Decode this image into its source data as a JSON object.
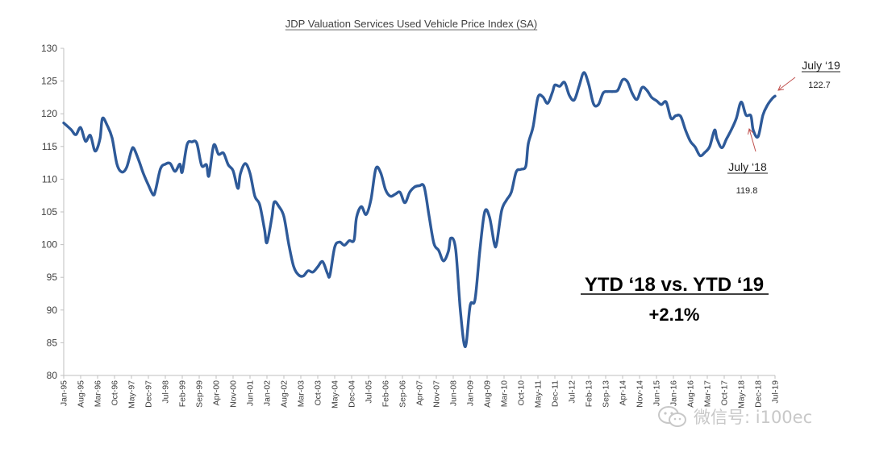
{
  "chart_data": {
    "type": "line",
    "title": "JDP Valuation Services Used Vehicle Price Index (SA)",
    "xlabel": "",
    "ylabel": "",
    "ylim": [
      80,
      130
    ],
    "yticks": [
      "130",
      "125",
      "120",
      "115",
      "110",
      "105",
      "100",
      "95",
      "90",
      "85",
      "80"
    ],
    "ytick_values": [
      130,
      125,
      120,
      115,
      110,
      105,
      100,
      95,
      90,
      85,
      80
    ],
    "xticks": [
      "Jan-95",
      "Aug-95",
      "Mar-96",
      "Oct-96",
      "May-97",
      "Dec-97",
      "Jul-98",
      "Feb-99",
      "Sep-99",
      "Apr-00",
      "Nov-00",
      "Jun-01",
      "Jan-02",
      "Aug-02",
      "Mar-03",
      "Oct-03",
      "May-04",
      "Dec-04",
      "Jul-05",
      "Feb-06",
      "Sep-06",
      "Apr-07",
      "Nov-07",
      "Jun-08",
      "Jan-09",
      "Aug-09",
      "Mar-10",
      "Oct-10",
      "May-11",
      "Dec-11",
      "Jul-12",
      "Feb-13",
      "Sep-13",
      "Apr-14",
      "Nov-14",
      "Jun-15",
      "Jan-16",
      "Aug-16",
      "Mar-17",
      "Oct-17",
      "May-18",
      "Dec-18",
      "Jul-19"
    ],
    "grid": false,
    "legend": "none",
    "series": [
      {
        "color": "#2e5a99",
        "points": [
          [
            "1995-01",
            118.6
          ],
          [
            "1995-04",
            117.6
          ],
          [
            "1995-06",
            116.8
          ],
          [
            "1995-08",
            117.9
          ],
          [
            "1995-10",
            115.8
          ],
          [
            "1995-12",
            116.7
          ],
          [
            "1996-02",
            114.3
          ],
          [
            "1996-04",
            116.2
          ],
          [
            "1996-05",
            119.3
          ],
          [
            "1996-07",
            118.2
          ],
          [
            "1996-09",
            116.3
          ],
          [
            "1996-11",
            112.3
          ],
          [
            "1997-01",
            111.1
          ],
          [
            "1997-03",
            111.8
          ],
          [
            "1997-05",
            114.4
          ],
          [
            "1997-06",
            114.7
          ],
          [
            "1997-08",
            112.9
          ],
          [
            "1997-10",
            110.8
          ],
          [
            "1997-12",
            109.1
          ],
          [
            "1998-02",
            107.6
          ],
          [
            "1998-03",
            108.4
          ],
          [
            "1998-05",
            111.6
          ],
          [
            "1998-07",
            112.3
          ],
          [
            "1998-09",
            112.4
          ],
          [
            "1998-11",
            111.2
          ],
          [
            "1999-01",
            112.3
          ],
          [
            "1999-02",
            111.1
          ],
          [
            "1999-04",
            115.3
          ],
          [
            "1999-06",
            115.7
          ],
          [
            "1999-08",
            115.5
          ],
          [
            "1999-10",
            112.1
          ],
          [
            "1999-12",
            112.2
          ],
          [
            "2000-01",
            110.5
          ],
          [
            "2000-03",
            115.2
          ],
          [
            "2000-05",
            113.8
          ],
          [
            "2000-07",
            114.0
          ],
          [
            "2000-09",
            112.2
          ],
          [
            "2000-11",
            111.3
          ],
          [
            "2001-01",
            108.6
          ],
          [
            "2001-02",
            110.8
          ],
          [
            "2001-04",
            112.4
          ],
          [
            "2001-06",
            110.9
          ],
          [
            "2001-08",
            107.4
          ],
          [
            "2001-10",
            106.1
          ],
          [
            "2001-12",
            102.3
          ],
          [
            "2002-01",
            100.3
          ],
          [
            "2002-03",
            104.1
          ],
          [
            "2002-04",
            106.5
          ],
          [
            "2002-06",
            105.8
          ],
          [
            "2002-08",
            104.3
          ],
          [
            "2002-10",
            100.1
          ],
          [
            "2002-12",
            96.7
          ],
          [
            "2003-02",
            95.4
          ],
          [
            "2003-04",
            95.2
          ],
          [
            "2003-06",
            96.0
          ],
          [
            "2003-08",
            95.8
          ],
          [
            "2003-10",
            96.6
          ],
          [
            "2003-12",
            97.4
          ],
          [
            "2004-02",
            95.6
          ],
          [
            "2004-03",
            95.3
          ],
          [
            "2004-05",
            99.6
          ],
          [
            "2004-07",
            100.4
          ],
          [
            "2004-09",
            99.9
          ],
          [
            "2004-11",
            100.6
          ],
          [
            "2005-01",
            100.7
          ],
          [
            "2005-02",
            104.1
          ],
          [
            "2005-04",
            105.8
          ],
          [
            "2005-06",
            104.6
          ],
          [
            "2005-08",
            106.9
          ],
          [
            "2005-10",
            111.6
          ],
          [
            "2005-12",
            111.0
          ],
          [
            "2006-02",
            108.4
          ],
          [
            "2006-04",
            107.4
          ],
          [
            "2006-06",
            107.7
          ],
          [
            "2006-08",
            108.0
          ],
          [
            "2006-10",
            106.4
          ],
          [
            "2006-12",
            108.0
          ],
          [
            "2007-02",
            108.8
          ],
          [
            "2007-04",
            109.0
          ],
          [
            "2007-06",
            108.8
          ],
          [
            "2007-08",
            104.4
          ],
          [
            "2007-10",
            100.2
          ],
          [
            "2007-12",
            99.1
          ],
          [
            "2008-02",
            97.5
          ],
          [
            "2008-04",
            99.0
          ],
          [
            "2008-05",
            101.0
          ],
          [
            "2008-07",
            99.3
          ],
          [
            "2008-09",
            89.7
          ],
          [
            "2008-11",
            84.4
          ],
          [
            "2009-01",
            90.7
          ],
          [
            "2009-03",
            91.6
          ],
          [
            "2009-05",
            99.1
          ],
          [
            "2009-07",
            105.0
          ],
          [
            "2009-09",
            104.2
          ],
          [
            "2009-11",
            100.1
          ],
          [
            "2009-12",
            100.3
          ],
          [
            "2010-02",
            105.2
          ],
          [
            "2010-04",
            106.8
          ],
          [
            "2010-06",
            108.0
          ],
          [
            "2010-08",
            111.1
          ],
          [
            "2010-10",
            111.5
          ],
          [
            "2010-12",
            112.0
          ],
          [
            "2011-01",
            115.4
          ],
          [
            "2011-03",
            118.0
          ],
          [
            "2011-05",
            122.5
          ],
          [
            "2011-07",
            122.6
          ],
          [
            "2011-09",
            121.6
          ],
          [
            "2011-11",
            123.3
          ],
          [
            "2011-12",
            124.4
          ],
          [
            "2012-02",
            124.2
          ],
          [
            "2012-04",
            124.8
          ],
          [
            "2012-06",
            122.8
          ],
          [
            "2012-08",
            122.1
          ],
          [
            "2012-10",
            124.2
          ],
          [
            "2012-12",
            126.3
          ],
          [
            "2013-02",
            124.5
          ],
          [
            "2013-04",
            121.5
          ],
          [
            "2013-06",
            121.4
          ],
          [
            "2013-08",
            123.2
          ],
          [
            "2013-10",
            123.4
          ],
          [
            "2013-12",
            123.4
          ],
          [
            "2014-02",
            123.6
          ],
          [
            "2014-04",
            125.2
          ],
          [
            "2014-06",
            124.9
          ],
          [
            "2014-08",
            123.1
          ],
          [
            "2014-10",
            122.2
          ],
          [
            "2014-12",
            124.0
          ],
          [
            "2015-02",
            123.6
          ],
          [
            "2015-04",
            122.5
          ],
          [
            "2015-06",
            122.0
          ],
          [
            "2015-08",
            121.4
          ],
          [
            "2015-10",
            121.8
          ],
          [
            "2015-12",
            119.3
          ],
          [
            "2016-02",
            119.7
          ],
          [
            "2016-04",
            119.6
          ],
          [
            "2016-06",
            117.5
          ],
          [
            "2016-08",
            115.8
          ],
          [
            "2016-10",
            114.9
          ],
          [
            "2016-12",
            113.6
          ],
          [
            "2017-02",
            114.1
          ],
          [
            "2017-04",
            115.0
          ],
          [
            "2017-06",
            117.5
          ],
          [
            "2017-07",
            116.2
          ],
          [
            "2017-09",
            114.8
          ],
          [
            "2017-11",
            116.2
          ],
          [
            "2018-01",
            117.6
          ],
          [
            "2018-03",
            119.3
          ],
          [
            "2018-05",
            121.8
          ],
          [
            "2018-07",
            119.8
          ],
          [
            "2018-09",
            119.7
          ],
          [
            "2018-10",
            117.5
          ],
          [
            "2018-12",
            116.5
          ],
          [
            "2019-02",
            119.8
          ],
          [
            "2019-04",
            121.4
          ],
          [
            "2019-06",
            122.4
          ],
          [
            "2019-07",
            122.7
          ]
        ]
      }
    ],
    "annotations": [
      {
        "label": "July ‘19",
        "value": "122.7",
        "date": "2019-07",
        "y": 122.7
      },
      {
        "label": "July ‘18",
        "value": "119.8",
        "date": "2018-07",
        "y": 119.8
      }
    ],
    "callout": {
      "headline": "YTD ‘18 vs. YTD ‘19",
      "change": "+2.1%"
    }
  },
  "watermark": {
    "icon": "wechat-logo-icon",
    "text": "微信号: i100ec"
  }
}
